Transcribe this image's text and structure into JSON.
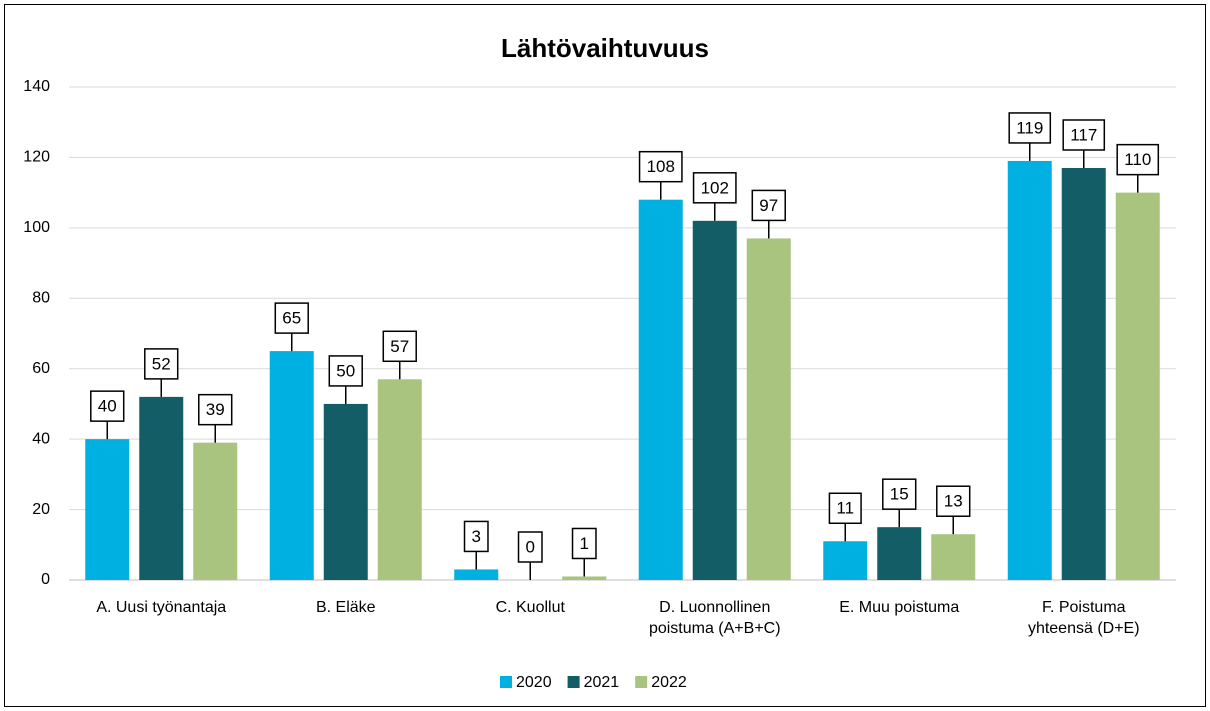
{
  "chart_data": {
    "type": "bar",
    "title": "Lähtövaihtuvuus",
    "categories": [
      "A. Uusi työnantaja",
      "B. Eläke",
      "C. Kuollut",
      "D. Luonnollinen\npoistuma (A+B+C)",
      "E. Muu poistuma",
      "F. Poistuma\nyhteensä (D+E)"
    ],
    "series": [
      {
        "name": "2020",
        "color": "#00b0e0",
        "values": [
          40,
          65,
          3,
          108,
          11,
          119
        ]
      },
      {
        "name": "2021",
        "color": "#135e66",
        "values": [
          52,
          50,
          0,
          102,
          15,
          117
        ]
      },
      {
        "name": "2022",
        "color": "#a9c47f",
        "values": [
          39,
          57,
          1,
          97,
          13,
          110
        ]
      }
    ],
    "ylim": [
      0,
      140
    ],
    "yticks": [
      0,
      20,
      40,
      60,
      80,
      100,
      120,
      140
    ],
    "grid": true,
    "legend": "bottom"
  }
}
